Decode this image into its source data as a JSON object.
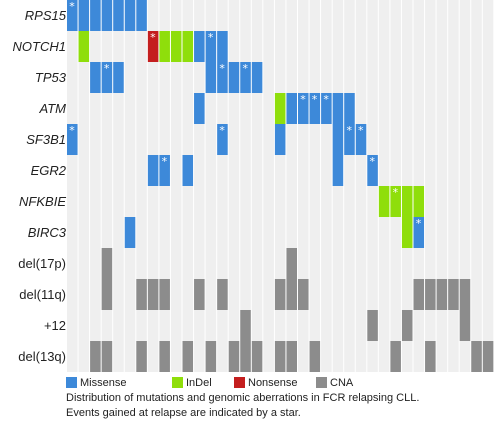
{
  "chart_data": {
    "type": "heatmap",
    "title": "",
    "rows": [
      {
        "label": "RPS15",
        "italic": true
      },
      {
        "label": "NOTCH1",
        "italic": true
      },
      {
        "label": "TP53",
        "italic": true
      },
      {
        "label": "ATM",
        "italic": true
      },
      {
        "label": "SF3B1",
        "italic": true
      },
      {
        "label": "EGR2",
        "italic": true
      },
      {
        "label": "NFKBIE",
        "italic": true
      },
      {
        "label": "BIRC3",
        "italic": true
      },
      {
        "label": "del(17p)",
        "italic": false
      },
      {
        "label": "del(11q)",
        "italic": false
      },
      {
        "label": "+12",
        "italic": false
      },
      {
        "label": "del(13q)",
        "italic": false
      }
    ],
    "n_columns": 37,
    "categories": {
      "M": {
        "name": "Missense",
        "color": "#3d89d9"
      },
      "I": {
        "name": "InDel",
        "color": "#8fde0b"
      },
      "N": {
        "name": "Nonsense",
        "color": "#c41e1e"
      },
      "C": {
        "name": "CNA",
        "color": "#8c8c8c"
      }
    },
    "empty_color": "#efefef",
    "legend": [
      "M",
      "I",
      "N",
      "C"
    ],
    "cells": [
      "M* M M M M M M . . . . . . . . . . . . . . . . . . . . . . . . . . . . . .",
      ". I . . . . . N* I I I M M* M . . . . . . . . . . . . . . . . . . . . . . .",
      ". . M M* M . . . . . . . M M* M M* M . . . . . . . . . . . . . . . . . . . .",
      ". . . . . . . . . . . M . . . . . . I M M* M* M* M M . . . . . . . . . . . .",
      "M* . . . . . . . . . . . . M* . . . . M . . . . M M* M* . . . . . . . . . . .",
      ". . . . . . . M M* . M . . . . . . . . . . . . M . . M* . . . . . . . . . .",
      ". . . . . . . . . . . . . . . . . . . . . . . . . . . I I* I I . . . . . .",
      ". . . . . M . . . . . . . . . . . . . . . . . . . . . . . I M* . . . . . .",
      ". . . C . . . . . . . . . . . . . . . C . . . . . . . . . . . . . . . . .",
      ". . . C . . C C C . . C . C . . . . C C C . . . . . . . . . C C C C C . .",
      ". . . . . . . . . . . . . . . C . . . . . . . . . . C . . C . . . . C . .",
      ". . C C . . C . C . C . C . C C C . C C . C . . . . . . C . . C . . . C C"
    ],
    "caption_lines": [
      "Distribution of mutations and genomic aberrations in FCR relapsing CLL.",
      "Events gained at relapse are indicated by a star."
    ]
  }
}
